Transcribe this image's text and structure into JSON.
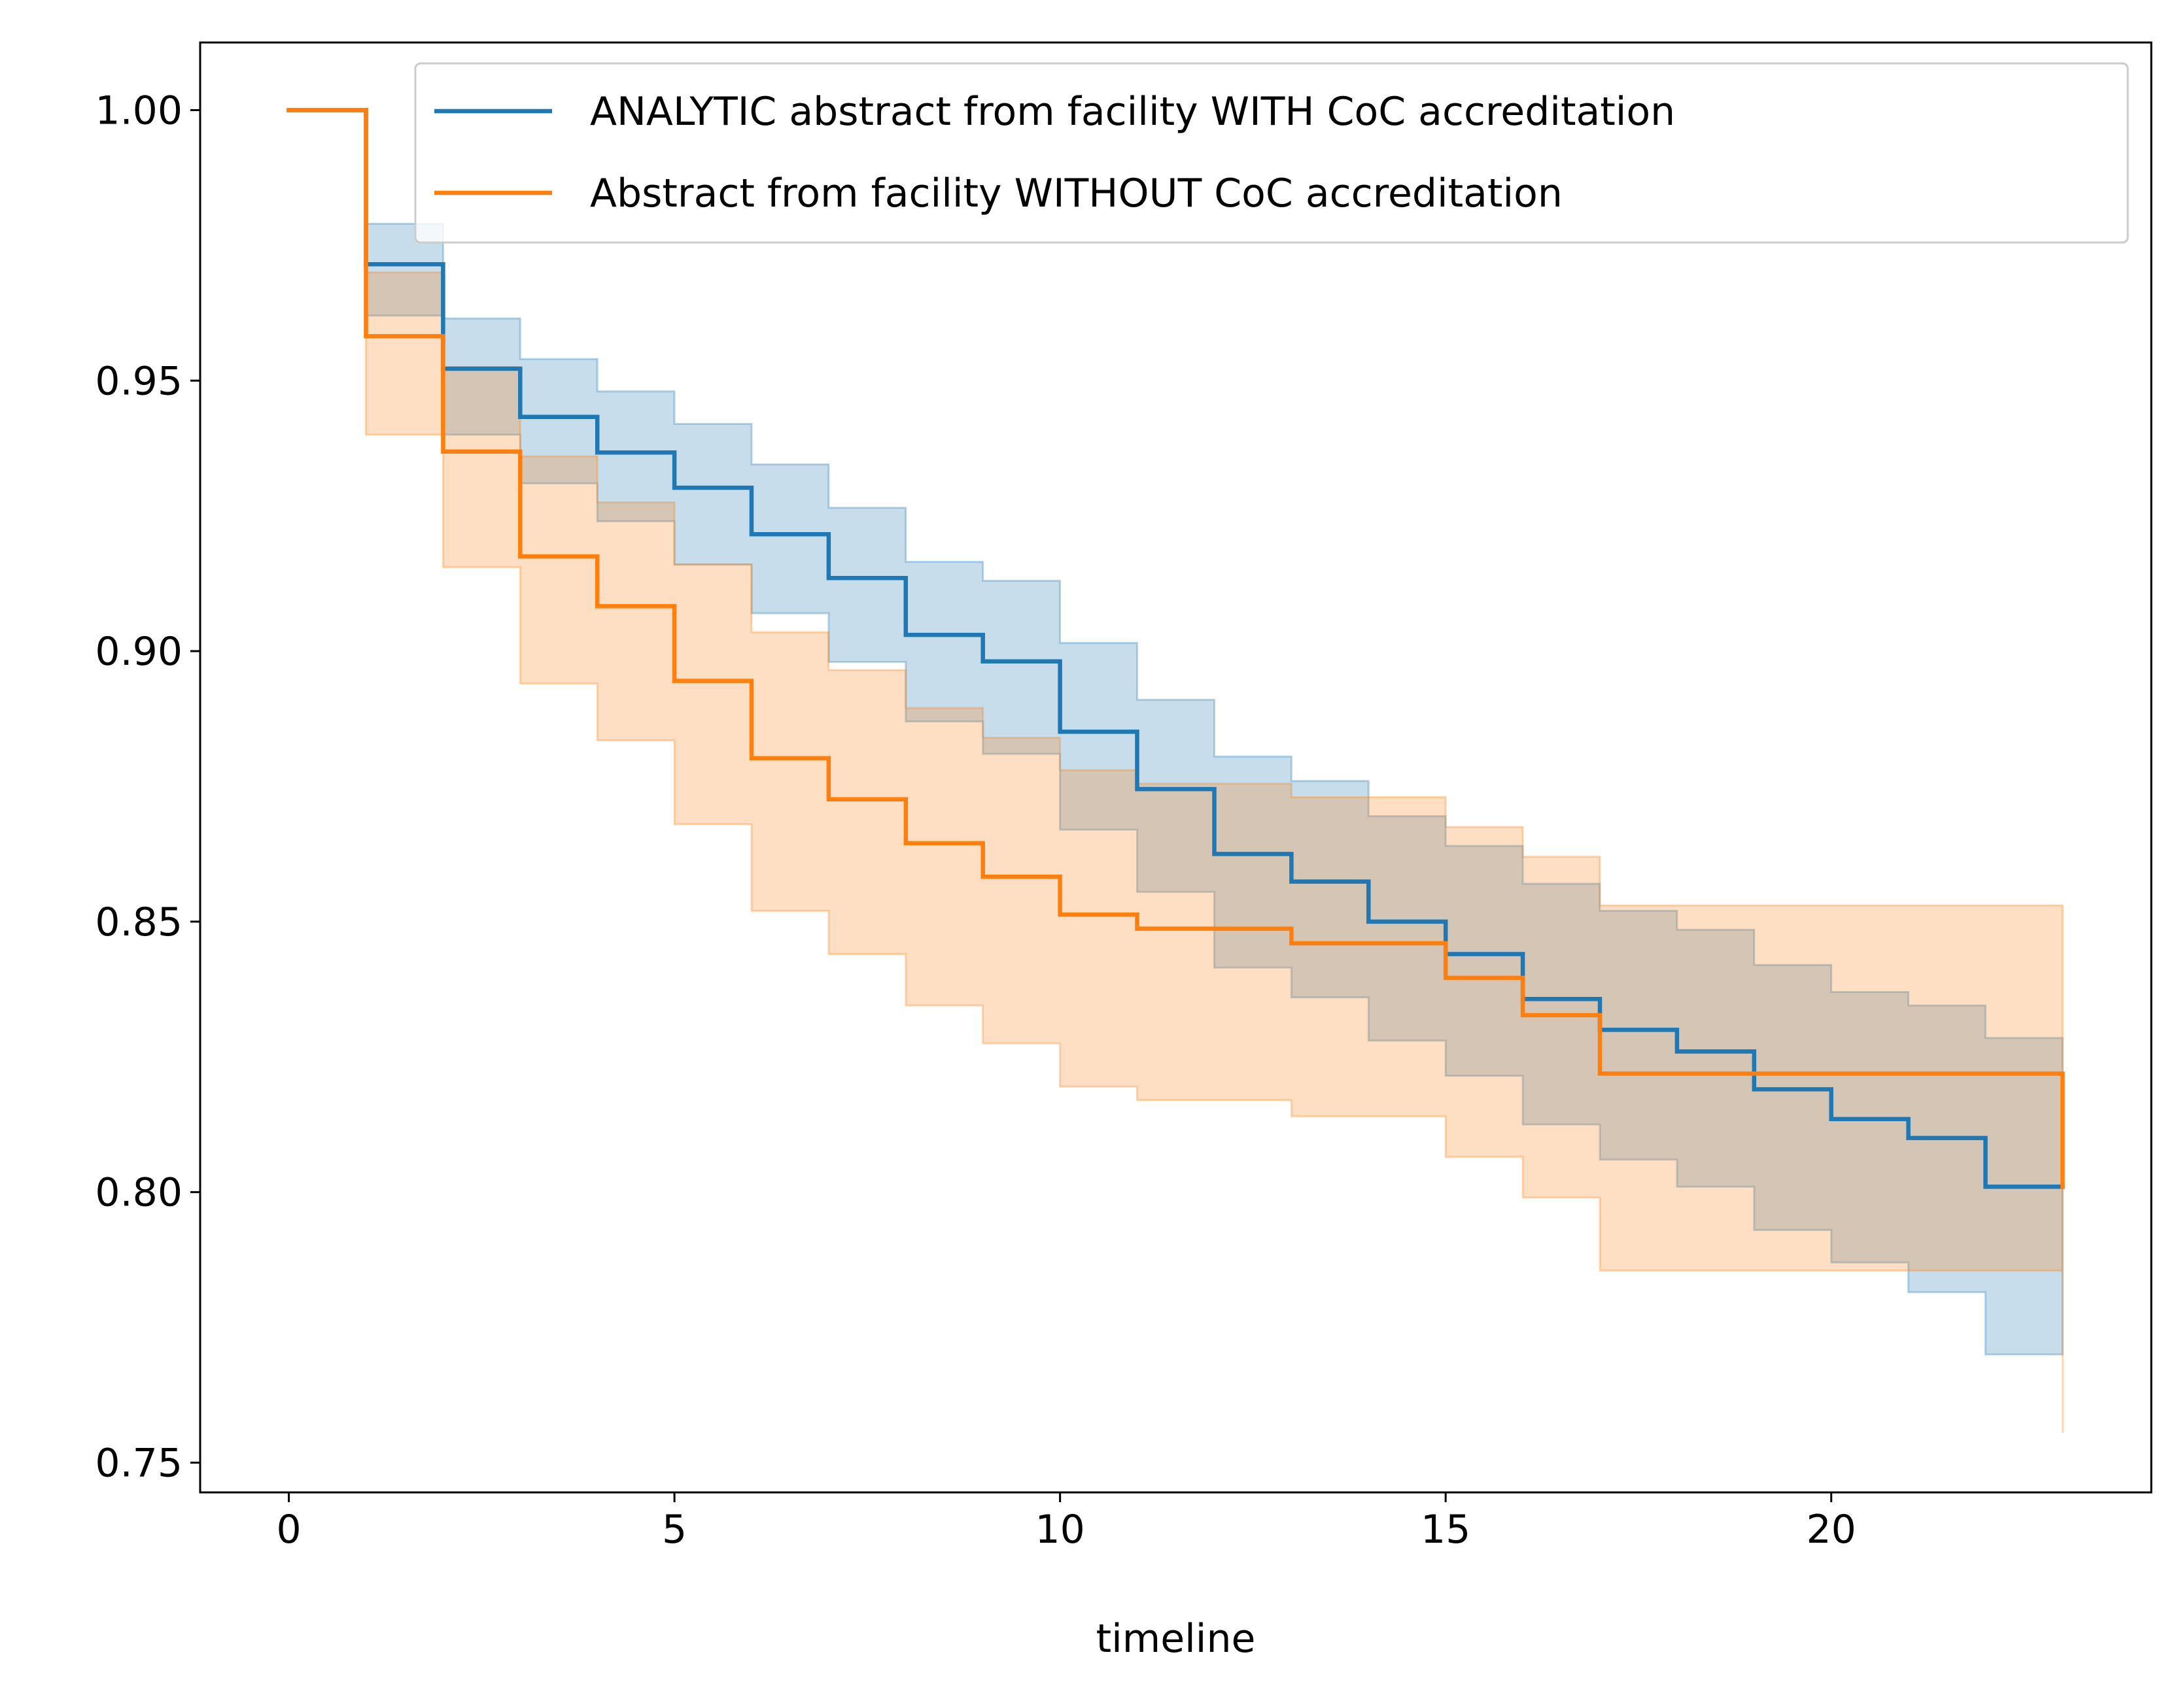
{
  "chart_data": {
    "type": "line",
    "title": "",
    "xlabel": "timeline",
    "ylabel": "",
    "xlim": [
      -1.15,
      24.15
    ],
    "ylim": [
      0.7445,
      1.0125
    ],
    "xticks": [
      0,
      5,
      10,
      15,
      20
    ],
    "yticks": [
      0.75,
      0.8,
      0.85,
      0.9,
      0.95,
      1.0
    ],
    "xtick_labels": [
      "0",
      "5",
      "10",
      "15",
      "20"
    ],
    "ytick_labels": [
      "0.75",
      "0.80",
      "0.85",
      "0.90",
      "0.95",
      "1.00"
    ],
    "grid": false,
    "legend": "top-right",
    "step": "post",
    "series": [
      {
        "name": "ANALYTIC abstract from facility WITH CoC accreditation",
        "color": "#1f77b4",
        "x": [
          0,
          1,
          2,
          3,
          4,
          5,
          6,
          7,
          8,
          9,
          10,
          11,
          12,
          13,
          14,
          15,
          16,
          17,
          18,
          19,
          20,
          21,
          22,
          23
        ],
        "y": [
          1.0,
          0.9715,
          0.9522,
          0.9433,
          0.9367,
          0.9302,
          0.9216,
          0.9135,
          0.903,
          0.8981,
          0.8851,
          0.8745,
          0.8625,
          0.8574,
          0.85,
          0.844,
          0.8357,
          0.83,
          0.826,
          0.819,
          0.8135,
          0.81,
          0.801,
          0.801
        ],
        "ci_lower": [
          1.0,
          0.962,
          0.94,
          0.931,
          0.924,
          0.916,
          0.907,
          0.898,
          0.887,
          0.881,
          0.867,
          0.8555,
          0.8415,
          0.836,
          0.828,
          0.8215,
          0.8125,
          0.806,
          0.801,
          0.793,
          0.787,
          0.7815,
          0.77,
          0.77
        ],
        "ci_upper": [
          1.0,
          0.979,
          0.9615,
          0.954,
          0.948,
          0.942,
          0.9345,
          0.9265,
          0.9165,
          0.913,
          0.9015,
          0.891,
          0.8805,
          0.876,
          0.8695,
          0.864,
          0.857,
          0.852,
          0.8485,
          0.842,
          0.837,
          0.8345,
          0.8285,
          0.8285
        ]
      },
      {
        "name": "Abstract from facility WITHOUT CoC accreditation",
        "color": "#ff7f0e",
        "x": [
          0,
          1,
          2,
          3,
          4,
          5,
          6,
          7,
          8,
          9,
          10,
          11,
          12,
          13,
          14,
          15,
          16,
          17,
          18,
          19,
          20,
          21,
          22,
          23
        ],
        "y": [
          1.0,
          0.9582,
          0.9369,
          0.9175,
          0.9083,
          0.8945,
          0.8802,
          0.8726,
          0.8645,
          0.8583,
          0.8513,
          0.8487,
          0.8487,
          0.846,
          0.846,
          0.8396,
          0.8327,
          0.8219,
          0.8219,
          0.8219,
          0.8219,
          0.8219,
          0.8219,
          0.801
        ],
        "ci_lower": [
          1.0,
          0.94,
          0.9155,
          0.894,
          0.8835,
          0.868,
          0.852,
          0.844,
          0.8345,
          0.8275,
          0.8195,
          0.817,
          0.817,
          0.814,
          0.814,
          0.8065,
          0.799,
          0.7855,
          0.7855,
          0.7855,
          0.7855,
          0.7855,
          0.7855,
          0.7555
        ],
        "ci_upper": [
          1.0,
          0.97,
          0.9525,
          0.936,
          0.9275,
          0.916,
          0.9035,
          0.8965,
          0.8895,
          0.884,
          0.878,
          0.8755,
          0.8755,
          0.873,
          0.873,
          0.8675,
          0.862,
          0.853,
          0.853,
          0.853,
          0.853,
          0.853,
          0.853,
          0.853
        ]
      }
    ]
  }
}
